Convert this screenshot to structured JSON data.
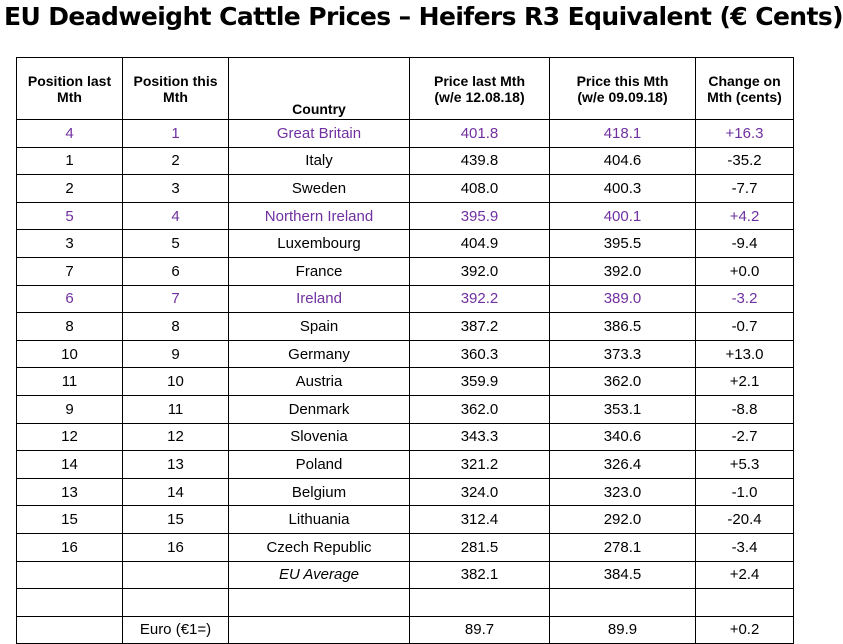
{
  "title": "EU Deadweight Cattle Prices – Heifers R3 Equivalent (€ Cents)",
  "highlight_color": "#7030a0",
  "headers": {
    "pos_last": [
      "Position last",
      "Mth"
    ],
    "pos_this": [
      "Position this",
      "Mth"
    ],
    "country": "Country",
    "price_last": [
      "Price last Mth",
      "(w/e 12.08.18)"
    ],
    "price_this": [
      "Price this Mth",
      "(w/e 09.09.18)"
    ],
    "change": [
      "Change on",
      "Mth (cents)"
    ]
  },
  "rows": [
    {
      "pos_last": "4",
      "pos_this": "1",
      "country": "Great Britain",
      "price_last": "401.8",
      "price_this": "418.1",
      "change": "+16.3",
      "highlight": true
    },
    {
      "pos_last": "1",
      "pos_this": "2",
      "country": "Italy",
      "price_last": "439.8",
      "price_this": "404.6",
      "change": "-35.2",
      "highlight": false
    },
    {
      "pos_last": "2",
      "pos_this": "3",
      "country": "Sweden",
      "price_last": "408.0",
      "price_this": "400.3",
      "change": "-7.7",
      "highlight": false
    },
    {
      "pos_last": "5",
      "pos_this": "4",
      "country": "Northern Ireland",
      "price_last": "395.9",
      "price_this": "400.1",
      "change": "+4.2",
      "highlight": true
    },
    {
      "pos_last": "3",
      "pos_this": "5",
      "country": "Luxembourg",
      "price_last": "404.9",
      "price_this": "395.5",
      "change": "-9.4",
      "highlight": false
    },
    {
      "pos_last": "7",
      "pos_this": "6",
      "country": "France",
      "price_last": "392.0",
      "price_this": "392.0",
      "change": "+0.0",
      "highlight": false
    },
    {
      "pos_last": "6",
      "pos_this": "7",
      "country": "Ireland",
      "price_last": "392.2",
      "price_this": "389.0",
      "change": "-3.2",
      "highlight": true
    },
    {
      "pos_last": "8",
      "pos_this": "8",
      "country": "Spain",
      "price_last": "387.2",
      "price_this": "386.5",
      "change": "-0.7",
      "highlight": false
    },
    {
      "pos_last": "10",
      "pos_this": "9",
      "country": "Germany",
      "price_last": "360.3",
      "price_this": "373.3",
      "change": "+13.0",
      "highlight": false
    },
    {
      "pos_last": "11",
      "pos_this": "10",
      "country": "Austria",
      "price_last": "359.9",
      "price_this": "362.0",
      "change": "+2.1",
      "highlight": false
    },
    {
      "pos_last": "9",
      "pos_this": "11",
      "country": "Denmark",
      "price_last": "362.0",
      "price_this": "353.1",
      "change": "-8.8",
      "highlight": false
    },
    {
      "pos_last": "12",
      "pos_this": "12",
      "country": "Slovenia",
      "price_last": "343.3",
      "price_this": "340.6",
      "change": "-2.7",
      "highlight": false
    },
    {
      "pos_last": "14",
      "pos_this": "13",
      "country": "Poland",
      "price_last": "321.2",
      "price_this": "326.4",
      "change": "+5.3",
      "highlight": false
    },
    {
      "pos_last": "13",
      "pos_this": "14",
      "country": "Belgium",
      "price_last": "324.0",
      "price_this": "323.0",
      "change": "-1.0",
      "highlight": false
    },
    {
      "pos_last": "15",
      "pos_this": "15",
      "country": "Lithuania",
      "price_last": "312.4",
      "price_this": "292.0",
      "change": "-20.4",
      "highlight": false
    },
    {
      "pos_last": "16",
      "pos_this": "16",
      "country": "Czech Republic",
      "price_last": "281.5",
      "price_this": "278.1",
      "change": "-3.4",
      "highlight": false
    }
  ],
  "average": {
    "label": "EU Average",
    "price_last": "382.1",
    "price_this": "384.5",
    "change": "+2.4"
  },
  "euro": {
    "label": "Euro (€1=)",
    "price_last": "89.7",
    "price_this": "89.9",
    "change": "+0.2"
  }
}
